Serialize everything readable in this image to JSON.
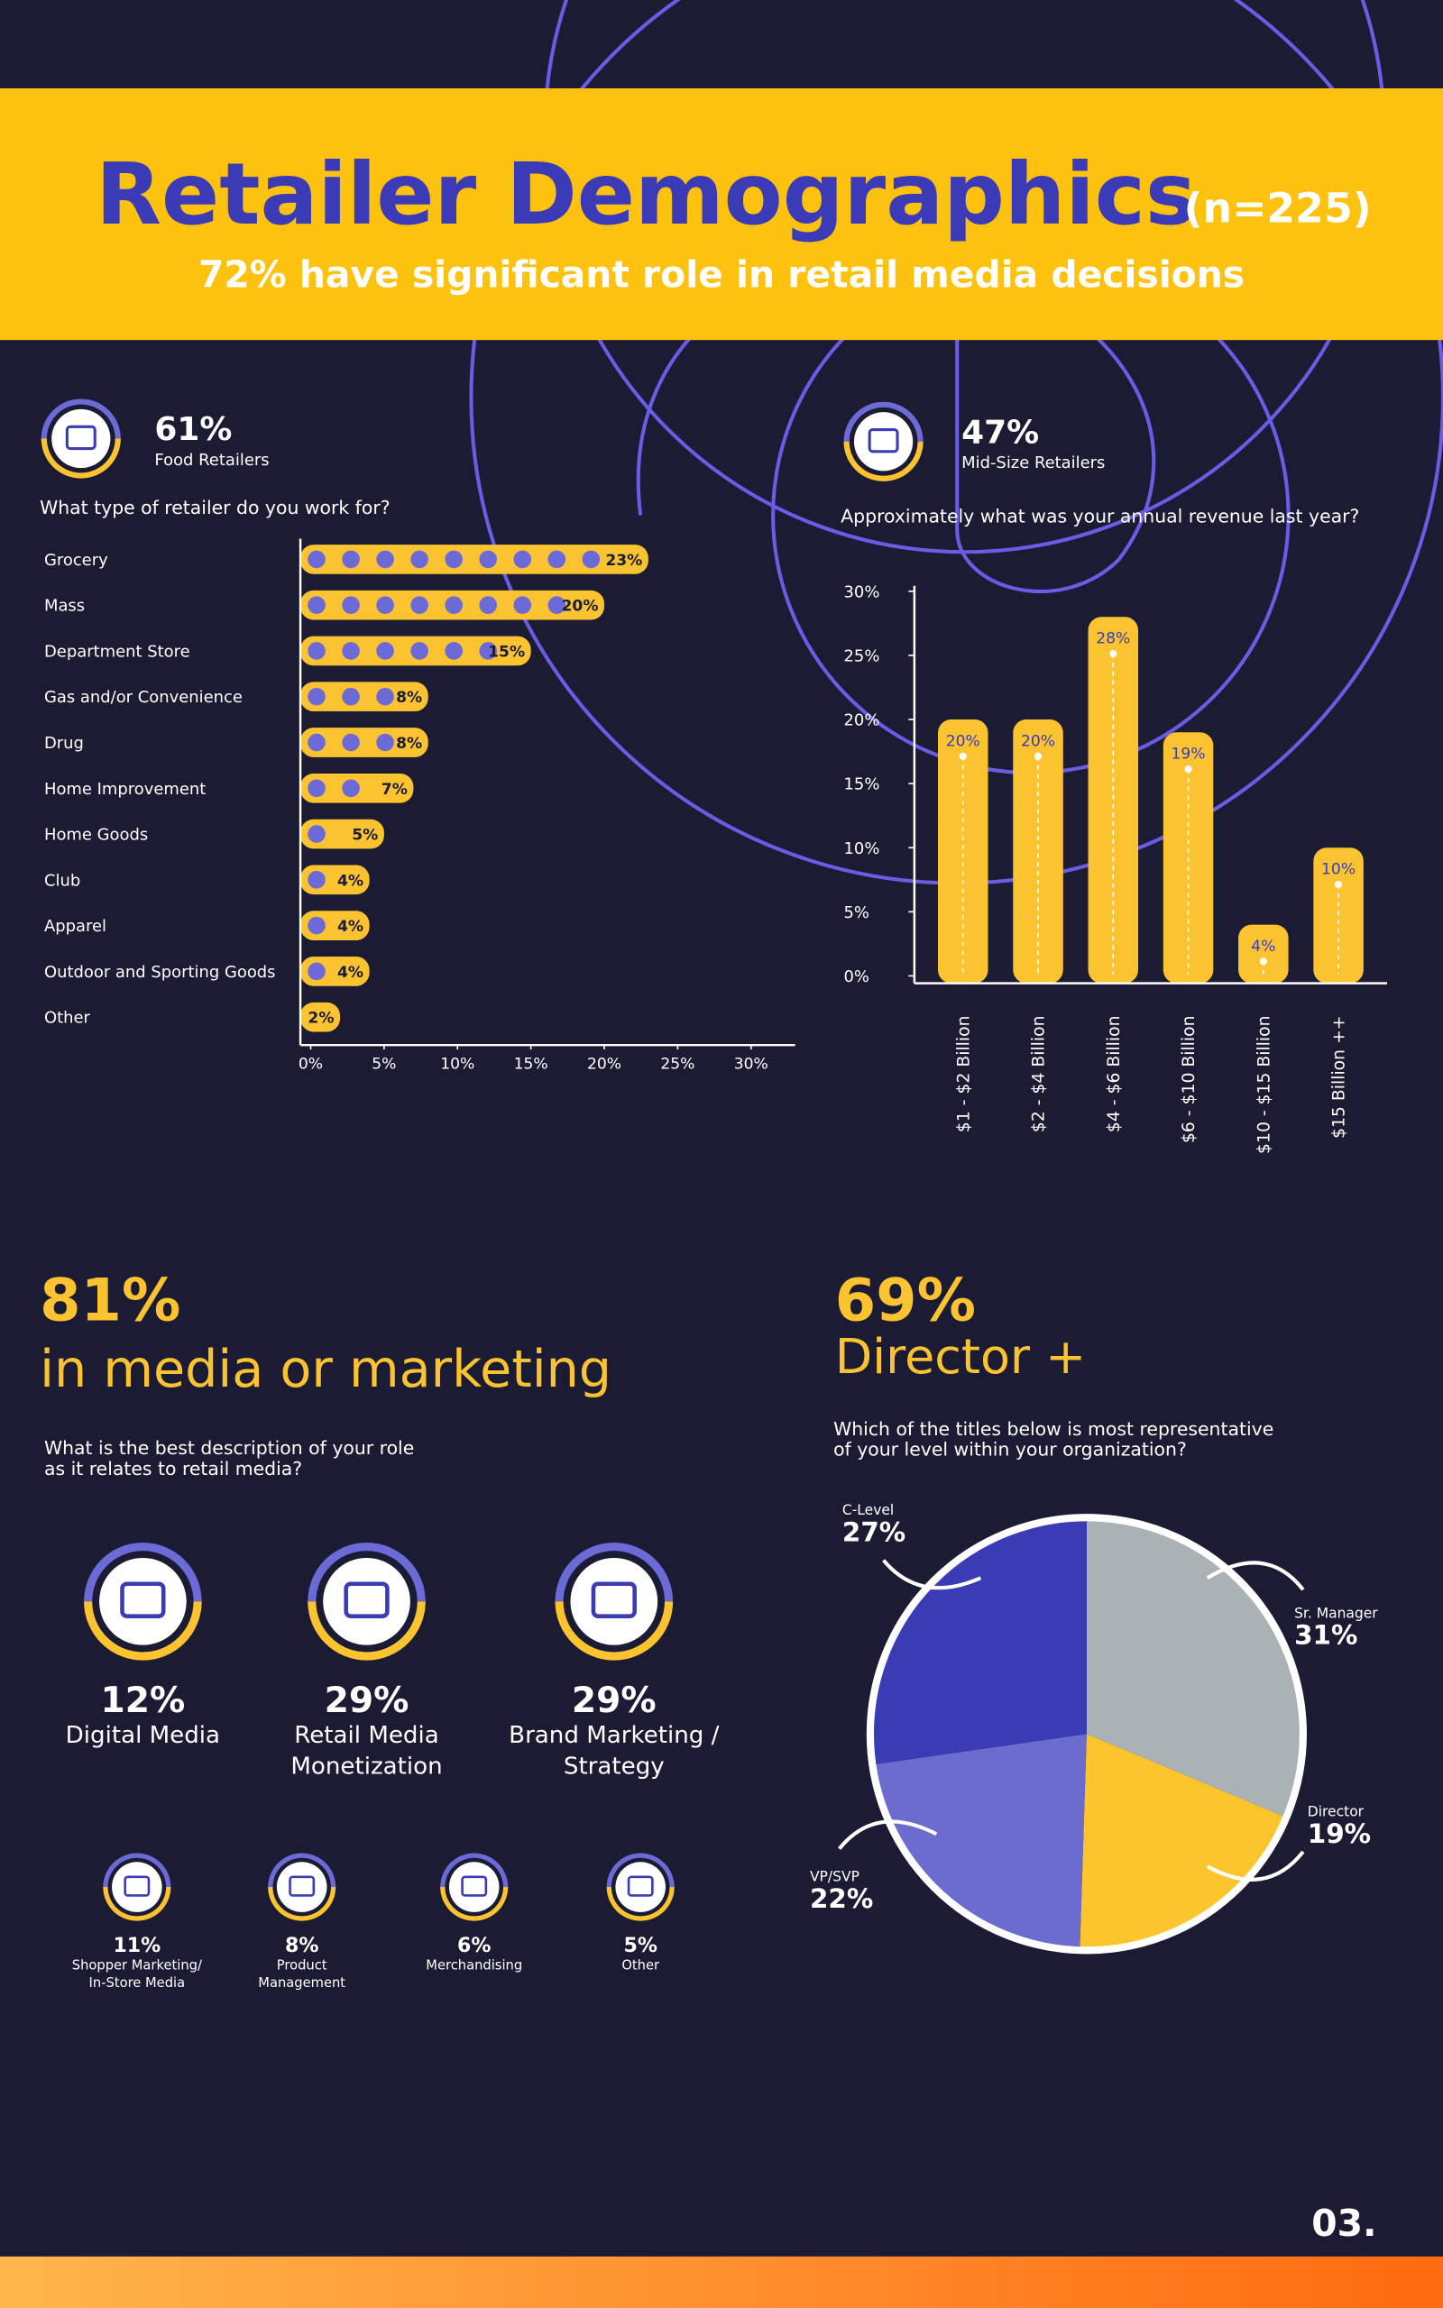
{
  "header": {
    "title": "Retailer Demographics",
    "sample": "(n=225)",
    "subtitle": "72% have significant role in retail media decisions"
  },
  "chart_data": [
    {
      "type": "hbar",
      "stat": "61%",
      "stat_label": "Food Retailers",
      "title": "What type of retailer do you work for?",
      "categories": [
        "Grocery",
        "Mass",
        "Department Store",
        "Gas and/or Convenience",
        "Drug",
        "Home Improvement",
        "Home Goods",
        "Club",
        "Apparel",
        "Outdoor and Sporting Goods",
        "Other"
      ],
      "values": [
        23,
        20,
        15,
        8,
        8,
        7,
        5,
        4,
        4,
        4,
        2
      ],
      "value_labels": [
        "23%",
        "20%",
        "15%",
        "8%",
        "8%",
        "7%",
        "5%",
        "4%",
        "4%",
        "4%",
        "2%"
      ],
      "color": "#fcc330",
      "dot_color": "#6c6ad6",
      "xlim": [
        0,
        33
      ],
      "xticks": [
        {
          "value": 0,
          "label": "0%"
        },
        {
          "value": 5,
          "label": "5%"
        },
        {
          "value": 10,
          "label": "10%"
        },
        {
          "value": 15,
          "label": "15%"
        },
        {
          "value": 20,
          "label": "20%"
        },
        {
          "value": 25,
          "label": "25%"
        },
        {
          "value": 30,
          "label": "30%"
        }
      ]
    },
    {
      "type": "vbar",
      "stat": "47%",
      "stat_label": "Mid-Size Retailers",
      "title": "Approximately what was your annual revenue last year?",
      "categories": [
        "$1 - $2 Billion",
        "$2 - $4 Billion",
        "$4 - $6 Billion",
        "$6 - $10 Billion",
        "$10 - $15 Billion",
        "$15 Billion ++"
      ],
      "values": [
        20,
        20,
        28,
        19,
        4,
        10
      ],
      "value_labels": [
        "20%",
        "20%",
        "28%",
        "19%",
        "4%",
        "10%"
      ],
      "color": "#fcc330",
      "ylim": [
        0,
        31
      ],
      "yticks": [
        {
          "value": 0,
          "label": "0%"
        },
        {
          "value": 5,
          "label": "5%"
        },
        {
          "value": 10,
          "label": "10%"
        },
        {
          "value": 15,
          "label": "15%"
        },
        {
          "value": 20,
          "label": "20%"
        },
        {
          "value": 25,
          "label": "25%"
        },
        {
          "value": 30,
          "label": "30%"
        }
      ]
    },
    {
      "type": "pie",
      "stat": "69%",
      "stat_label": "Director +",
      "title": [
        "Which of the titles below is most representative",
        "of your level within your organization?"
      ],
      "categories": [
        "Sr. Manager",
        "Director",
        "VP/SVP",
        "C-Level"
      ],
      "values": [
        31,
        19,
        22,
        27
      ],
      "value_labels": [
        "31%",
        "19%",
        "22%",
        "27%"
      ],
      "colors": [
        "#aab2b5",
        "#fcc52d",
        "#6b6bd0",
        "#3a3bb5"
      ]
    }
  ],
  "roles": {
    "stat": "81%",
    "stat_label": "in media or marketing",
    "question": [
      "What is the best description of your role",
      "as it relates to retail media?"
    ],
    "primary": [
      {
        "value": "12%",
        "label": [
          "Digital Media"
        ]
      },
      {
        "value": "29%",
        "label": [
          "Retail Media",
          "Monetization"
        ]
      },
      {
        "value": "29%",
        "label": [
          "Brand Marketing /",
          "Strategy"
        ]
      }
    ],
    "secondary": [
      {
        "value": "11%",
        "label": [
          "Shopper Marketing/",
          "In-Store Media"
        ]
      },
      {
        "value": "8%",
        "label": [
          "Product",
          "Management"
        ]
      },
      {
        "value": "6%",
        "label": [
          "Merchandising"
        ]
      },
      {
        "value": "5%",
        "label": [
          "Other"
        ]
      }
    ]
  },
  "page_number": "03."
}
